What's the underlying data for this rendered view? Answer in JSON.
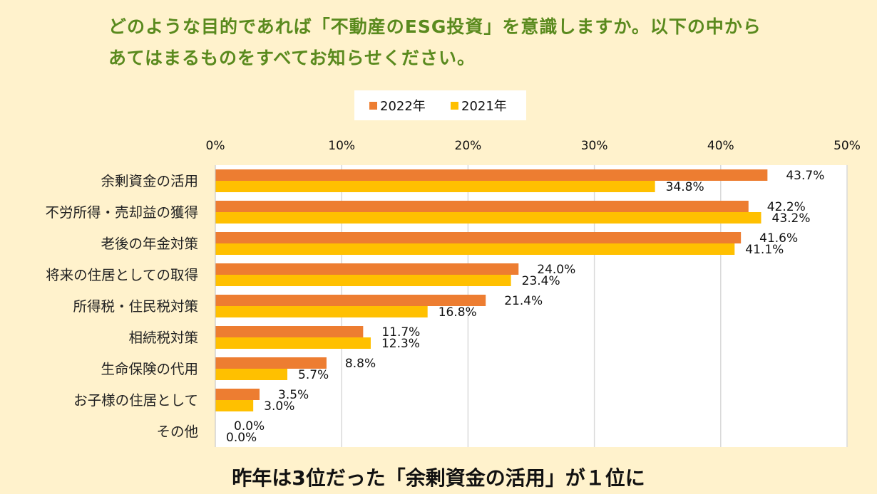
{
  "question": {
    "line1": "どのような目的であれば「不動産のESG投資」を意識しますか。以下の中から",
    "line2": "あてはまるものをすべてお知らせください。"
  },
  "footer": "昨年は3位だった「余剰資金の活用」が１位に",
  "chart_data": {
    "type": "bar",
    "orientation": "horizontal",
    "categories": [
      "余剰資金の活用",
      "不労所得・売却益の獲得",
      "老後の年金対策",
      "将来の住居としての取得",
      "所得税・住民税対策",
      "相続税対策",
      "生命保険の代用",
      "お子様の住居として",
      "その他"
    ],
    "series": [
      {
        "name": "2022年",
        "color": "#ED7D31",
        "values": [
          43.7,
          42.2,
          41.6,
          24.0,
          21.4,
          11.7,
          8.8,
          3.5,
          0.0
        ]
      },
      {
        "name": "2021年",
        "color": "#FFC000",
        "values": [
          34.8,
          43.2,
          41.1,
          23.4,
          16.8,
          12.3,
          5.7,
          3.0,
          0.0
        ]
      }
    ],
    "xlim": [
      0,
      50
    ],
    "ticks": [
      0,
      10,
      20,
      30,
      40,
      50
    ],
    "tick_labels": [
      "0%",
      "10%",
      "20%",
      "30%",
      "40%",
      "50%"
    ],
    "value_suffix": "%",
    "legend_position": "top",
    "grid": true
  }
}
